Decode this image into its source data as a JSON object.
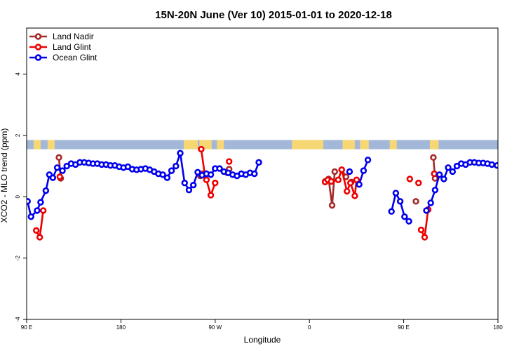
{
  "chart_data": {
    "type": "line",
    "title": "15N-20N June (Ver 10)   2015-01-01 to 2020-12-18",
    "xlabel": "Longitude",
    "ylabel": "XCO2 - MLO trend (ppm)",
    "xlim": [
      -90,
      180
    ],
    "ylim": [
      -4,
      5.5
    ],
    "x_ticks": [
      {
        "value": -90,
        "label": "90 E"
      },
      {
        "value": -36,
        "label": "180"
      },
      {
        "value": 18,
        "label": "90 W"
      },
      {
        "value": 72,
        "label": "0"
      },
      {
        "value": 126,
        "label": "90 E"
      },
      {
        "value": 180,
        "label": "180"
      }
    ],
    "y_ticks": [
      {
        "value": -4,
        "label": "-4"
      },
      {
        "value": -2,
        "label": "-2"
      },
      {
        "value": 0,
        "label": "0"
      },
      {
        "value": 2,
        "label": "2"
      },
      {
        "value": 4,
        "label": "4"
      }
    ],
    "legend_position": "top-left",
    "land_ocean_strip": {
      "y_range": [
        1.55,
        1.85
      ],
      "ocean_color": "#a3b8d8",
      "land_color": "#f7d774"
    },
    "series": [
      {
        "name": "Land Nadir",
        "color": "#a52a2a",
        "segments": [
          [
            [
              -71.5,
              1.28
            ],
            [
              -70.5,
              0.6
            ]
          ],
          [
            [
              9.5,
              0.68
            ],
            [
              11,
              0.75
            ]
          ],
          [
            [
              25,
              0.78
            ],
            [
              26,
              0.9
            ]
          ],
          [
            [
              81,
              0.5
            ]
          ],
          [
            [
              83,
              0.58
            ],
            [
              85,
              -0.28
            ],
            [
              86.5,
              0.82
            ]
          ],
          [
            [
              90.5,
              0.88
            ],
            [
              93,
              0.65
            ]
          ],
          [
            [
              96,
              0.48
            ]
          ],
          [
            [
              133,
              -0.15
            ]
          ],
          [
            [
              143,
              1.28
            ],
            [
              144,
              0.6
            ]
          ]
        ]
      },
      {
        "name": "Land Glint",
        "color": "#ee0000",
        "segments": [
          [
            [
              -84.5,
              -1.1
            ],
            [
              -82.5,
              -1.32
            ],
            [
              -80.5,
              -0.45
            ]
          ],
          [
            [
              -71,
              0.65
            ]
          ],
          [
            [
              10,
              1.55
            ],
            [
              12,
              0.75
            ],
            [
              13,
              0.55
            ],
            [
              15.5,
              0.05
            ],
            [
              18,
              0.45
            ]
          ],
          [
            [
              26,
              1.15
            ]
          ],
          [
            [
              81,
              0.48
            ]
          ],
          [
            [
              82.5,
              0.55
            ],
            [
              84.5,
              0.5
            ],
            [
              88.5,
              0.55
            ],
            [
              90.5,
              0.88
            ],
            [
              93.5,
              0.18
            ],
            [
              95.5,
              0.45
            ],
            [
              98,
              0.03
            ],
            [
              99,
              0.55
            ]
          ],
          [
            [
              134.5,
              0.45
            ]
          ],
          [
            [
              129.5,
              0.58
            ]
          ],
          [
            [
              136,
              -1.08
            ],
            [
              138,
              -1.32
            ],
            [
              140,
              -0.42
            ]
          ],
          [
            [
              143.5,
              0.75
            ]
          ]
        ]
      },
      {
        "name": "Ocean Glint",
        "color": "#0000ee",
        "segments": [
          [
            [
              -89.5,
              -0.15
            ],
            [
              -87.5,
              -0.65
            ],
            [
              -84,
              -0.45
            ],
            [
              -82,
              -0.18
            ],
            [
              -79,
              0.2
            ],
            [
              -77,
              0.72
            ],
            [
              -75,
              0.62
            ],
            [
              -72.5,
              0.95
            ],
            [
              -69.5,
              0.85
            ],
            [
              -67,
              1.0
            ],
            [
              -64.5,
              1.08
            ],
            [
              -62,
              1.05
            ],
            [
              -59.5,
              1.12
            ],
            [
              -57,
              1.12
            ],
            [
              -54.5,
              1.1
            ],
            [
              -52,
              1.08
            ],
            [
              -49.5,
              1.08
            ],
            [
              -47,
              1.05
            ],
            [
              -44.5,
              1.05
            ],
            [
              -42,
              1.02
            ],
            [
              -39.5,
              1.02
            ],
            [
              -37,
              0.98
            ],
            [
              -34.5,
              0.95
            ],
            [
              -32,
              0.98
            ],
            [
              -29.5,
              0.9
            ],
            [
              -27,
              0.88
            ],
            [
              -24.5,
              0.9
            ],
            [
              -22,
              0.92
            ],
            [
              -19.5,
              0.88
            ],
            [
              -17,
              0.82
            ],
            [
              -14.5,
              0.75
            ],
            [
              -12,
              0.72
            ],
            [
              -9.5,
              0.62
            ],
            [
              -7,
              0.85
            ],
            [
              -4.5,
              1.0
            ],
            [
              -2,
              1.42
            ],
            [
              0.5,
              0.45
            ],
            [
              3,
              0.22
            ],
            [
              5.5,
              0.38
            ],
            [
              8,
              0.8
            ],
            [
              10.5,
              0.7
            ],
            [
              13,
              0.75
            ],
            [
              15.5,
              0.72
            ],
            [
              18,
              0.92
            ],
            [
              20.5,
              0.92
            ],
            [
              23,
              0.82
            ],
            [
              25.5,
              0.78
            ],
            [
              28,
              0.72
            ],
            [
              30.5,
              0.68
            ],
            [
              33,
              0.75
            ],
            [
              35.5,
              0.72
            ],
            [
              38,
              0.78
            ],
            [
              40.5,
              0.75
            ],
            [
              43,
              1.12
            ]
          ],
          [
            [
              95,
              0.82
            ]
          ],
          [
            [
              100.5,
              0.4
            ],
            [
              103,
              0.85
            ],
            [
              105.5,
              1.2
            ]
          ],
          [
            [
              139,
              -0.45
            ],
            [
              141.5,
              -0.2
            ],
            [
              144,
              0.22
            ],
            [
              146.5,
              0.72
            ],
            [
              149,
              0.58
            ],
            [
              151.5,
              0.95
            ],
            [
              154,
              0.82
            ],
            [
              156.5,
              1.0
            ],
            [
              159,
              1.08
            ],
            [
              161.5,
              1.05
            ],
            [
              164,
              1.12
            ],
            [
              166.5,
              1.12
            ],
            [
              169,
              1.1
            ],
            [
              171.5,
              1.1
            ],
            [
              174,
              1.08
            ],
            [
              176.5,
              1.05
            ],
            [
              179.5,
              1.02
            ]
          ],
          [
            [
              119,
              -0.48
            ],
            [
              121.5,
              0.12
            ],
            [
              124,
              -0.15
            ],
            [
              126.5,
              -0.65
            ],
            [
              129,
              -0.8
            ]
          ]
        ]
      }
    ]
  }
}
